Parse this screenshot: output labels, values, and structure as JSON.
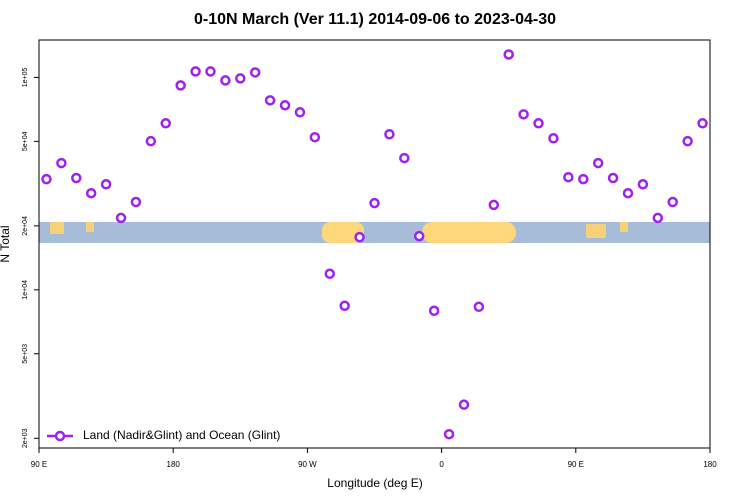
{
  "chart_data": {
    "type": "scatter",
    "title": "0-10N March (Ver 11.1)   2014-09-06 to 2023-04-30",
    "xlabel": "Longitude (deg E)",
    "ylabel": "N Total",
    "xlim": [
      90,
      540
    ],
    "xticks": [
      {
        "value": 90,
        "label": "90 E"
      },
      180,
      {
        "value": 270,
        "label": "90 W"
      },
      {
        "value": 360,
        "label": "0"
      },
      {
        "value": 450,
        "label": "90 E"
      },
      {
        "value": 540,
        "label": "180"
      }
    ],
    "ylim": [
      1800,
      150000
    ],
    "log_y": true,
    "yticks": [
      {
        "value": 2000,
        "label": "2e+03"
      },
      {
        "value": 5000,
        "label": "5e+03"
      },
      {
        "value": 10000,
        "label": "1e+04"
      },
      {
        "value": 20000,
        "label": "2e+04"
      },
      {
        "value": 50000,
        "label": "5e+04"
      },
      {
        "value": 100000,
        "label": "1e+05"
      }
    ],
    "legend": "bottomleft",
    "series": [
      {
        "name": "Land (Nadir&Glint) and Ocean (Glint)",
        "color": "#a020f0",
        "x": [
          95,
          105,
          115,
          125,
          135,
          145,
          155,
          165,
          175,
          185,
          195,
          205,
          215,
          225,
          235,
          245,
          255,
          265,
          275,
          285,
          295,
          305,
          315,
          325,
          335,
          345,
          355,
          365,
          375,
          385,
          395,
          405,
          415,
          425,
          435,
          445,
          455,
          465,
          475,
          485,
          495,
          505,
          515,
          525,
          535
        ],
        "values": [
          33200,
          39500,
          33600,
          28500,
          31400,
          21800,
          25900,
          50100,
          60800,
          91700,
          106700,
          106700,
          96800,
          98900,
          105500,
          78000,
          73900,
          68500,
          52300,
          11900,
          8410,
          17700,
          25600,
          54000,
          41700,
          17900,
          7970,
          2090,
          2880,
          8320,
          25100,
          128200,
          67000,
          60800,
          51700,
          33900,
          33200,
          39500,
          33600,
          28500,
          31400,
          21800,
          25900,
          50100,
          60800
        ]
      }
    ]
  }
}
